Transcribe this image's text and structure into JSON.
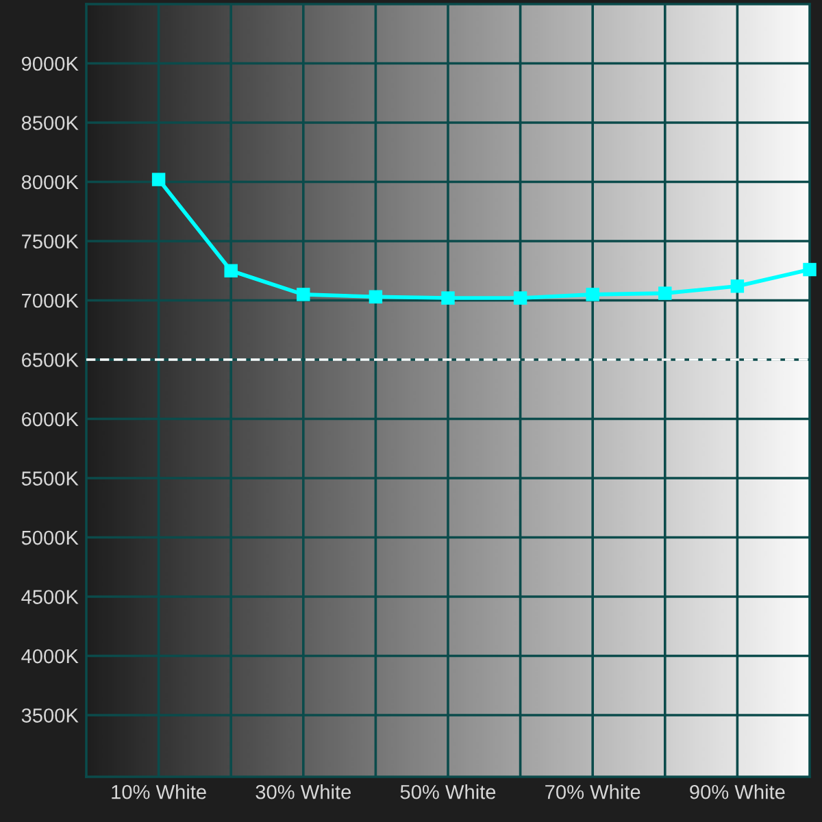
{
  "chart_data": {
    "type": "line",
    "x": [
      10,
      20,
      30,
      40,
      50,
      60,
      70,
      80,
      90,
      100
    ],
    "series": [
      {
        "color": "#00ffff",
        "values": [
          8020,
          7250,
          7050,
          7030,
          7020,
          7020,
          7050,
          7060,
          7120,
          7260
        ]
      }
    ],
    "xlim": [
      0,
      100
    ],
    "xticks": [
      {
        "value": 10,
        "label": "10% White"
      },
      {
        "value": 20,
        "label": null
      },
      {
        "value": 30,
        "label": "30% White"
      },
      {
        "value": 40,
        "label": null
      },
      {
        "value": 50,
        "label": "50% White"
      },
      {
        "value": 60,
        "label": null
      },
      {
        "value": 70,
        "label": "70% White"
      },
      {
        "value": 80,
        "label": null
      },
      {
        "value": 90,
        "label": "90% White"
      }
    ],
    "ylim": [
      2980,
      9500
    ],
    "yticks": [
      {
        "value": 3500,
        "label": "3500K"
      },
      {
        "value": 4000,
        "label": "4000K"
      },
      {
        "value": 4500,
        "label": "4500K"
      },
      {
        "value": 5000,
        "label": "5000K"
      },
      {
        "value": 5500,
        "label": "5500K"
      },
      {
        "value": 6000,
        "label": "6000K"
      },
      {
        "value": 6500,
        "label": "6500K"
      },
      {
        "value": 7000,
        "label": "7000K"
      },
      {
        "value": 7500,
        "label": "7500K"
      },
      {
        "value": 8000,
        "label": "8000K"
      },
      {
        "value": 8500,
        "label": "8500K"
      },
      {
        "value": 9000,
        "label": "9000K"
      }
    ],
    "ref_lines": [
      {
        "axis": "y",
        "value": 6500,
        "color": "#ffffff",
        "line_style": "dashed"
      }
    ],
    "grid": true,
    "marker": "square"
  }
}
